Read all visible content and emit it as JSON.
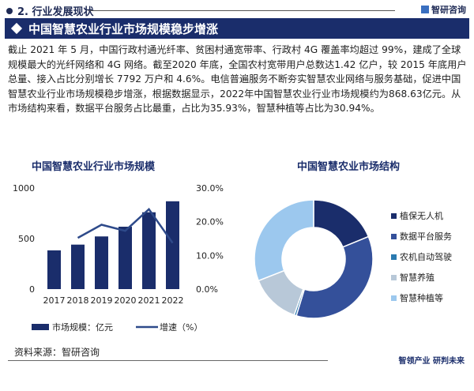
{
  "header": {
    "section": "2. 行业发展现状",
    "brand": "智研咨询",
    "banner": "中国智慧农业行业市场规模稳步增涨"
  },
  "paragraph": "截止 2021 年 5 月，中国行政村通光纤率、贫困村通宽带率、行政村 4G 覆盖率均超过 99%，建成了全球规模最大的光纤网络和 4G 网络。截至2020 年底，全国农村宽带用户总数达1.42 亿户，较 2015 年底用户总量、接入占比分别增长 7792 万户和 4.6%。电信普遍服务不断夯实智慧农业网络与服务基础，促进中国智慧农业行业市场规模稳步增涨，根据数据显示，2022年中国智慧农业行业市场规模约为868.63亿元。从市场结构来看，数据平台服务占比最重，占比为35.93%，智慧种植等占比为30.94%。",
  "chart_data": [
    {
      "type": "bar",
      "title": "中国智慧农业行业市场规模",
      "categories": [
        "2017",
        "2018",
        "2019",
        "2020",
        "2021",
        "2022"
      ],
      "series": [
        {
          "name": "市场规模：亿元",
          "type": "bar",
          "axis": "left",
          "values": [
            383,
            440,
            521,
            617,
            760,
            868.63
          ],
          "color": "#1a2d6b"
        },
        {
          "name": "增速（%）",
          "type": "line",
          "axis": "right",
          "values": [
            null,
            15.2,
            19.1,
            17.3,
            23.7,
            13.7
          ],
          "color": "#2e4a8a"
        }
      ],
      "ylim": [
        0,
        1000
      ],
      "yticks": [
        "0",
        "500",
        "1000"
      ],
      "y2lim": [
        0,
        30
      ],
      "y2ticks": [
        "0.0%",
        "10.0%",
        "20.0%",
        "30.0%"
      ],
      "legend": "bottom"
    },
    {
      "type": "pie",
      "title": "中国智慧农业市场结构",
      "donut": true,
      "labels": [
        "植保无人机",
        "数据平台服务",
        "农机自动驾驶",
        "智慧养殖",
        "智慧种植等"
      ],
      "values": [
        18.8,
        35.93,
        0.6,
        13.73,
        30.94
      ],
      "colors": [
        "#1a2d6b",
        "#34509a",
        "#2a7ab0",
        "#b8c8d8",
        "#9cc8ee"
      ],
      "legend": "right"
    }
  ],
  "footer": {
    "source": "资料来源：智研咨询",
    "slogan": "智领产业 研判未来"
  }
}
